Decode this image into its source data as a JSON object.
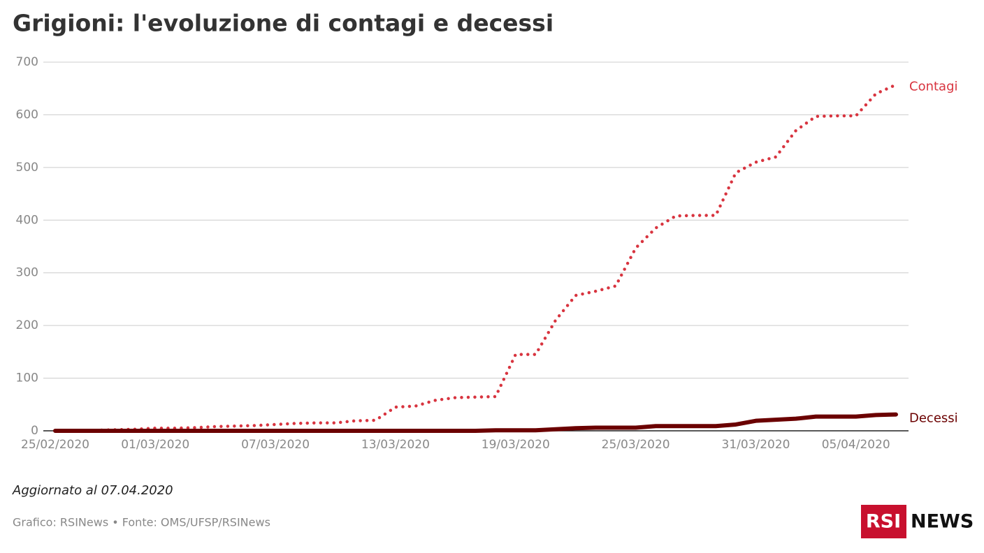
{
  "chart_data": {
    "type": "line",
    "title": "Grigioni: l'evoluzione di contagi e decessi",
    "note": "Aggiornato al 07.04.2020",
    "source": "Grafico: RSINews • Fonte: OMS/UFSP/RSINews",
    "logo": {
      "brand": "RSI",
      "label": "NEWS"
    },
    "x": [
      "25/02/2020",
      "26/02/2020",
      "27/02/2020",
      "28/02/2020",
      "29/02/2020",
      "01/03/2020",
      "02/03/2020",
      "03/03/2020",
      "04/03/2020",
      "05/03/2020",
      "06/03/2020",
      "07/03/2020",
      "08/03/2020",
      "09/03/2020",
      "10/03/2020",
      "11/03/2020",
      "12/03/2020",
      "13/03/2020",
      "14/03/2020",
      "15/03/2020",
      "16/03/2020",
      "17/03/2020",
      "18/03/2020",
      "19/03/2020",
      "20/03/2020",
      "21/03/2020",
      "22/03/2020",
      "23/03/2020",
      "24/03/2020",
      "25/03/2020",
      "26/03/2020",
      "27/03/2020",
      "28/03/2020",
      "29/03/2020",
      "30/03/2020",
      "31/03/2020",
      "01/04/2020",
      "02/04/2020",
      "03/04/2020",
      "04/04/2020",
      "05/04/2020",
      "06/04/2020",
      "07/04/2020"
    ],
    "xticks": [
      "25/02/2020",
      "01/03/2020",
      "07/03/2020",
      "13/03/2020",
      "19/03/2020",
      "25/03/2020",
      "31/03/2020",
      "05/04/2020"
    ],
    "ylim": [
      0,
      700
    ],
    "yticks": [
      0,
      100,
      200,
      300,
      400,
      500,
      600,
      700
    ],
    "grid": true,
    "series": [
      {
        "name": "Contagi",
        "color": "#d8343f",
        "style": "dotted",
        "values": [
          0,
          0,
          1,
          2,
          3,
          5,
          5,
          6,
          8,
          9,
          10,
          12,
          14,
          15,
          15,
          19,
          20,
          45,
          47,
          58,
          63,
          64,
          65,
          145,
          145,
          210,
          257,
          265,
          275,
          347,
          385,
          408,
          409,
          409,
          490,
          510,
          520,
          570,
          597,
          598,
          598,
          640,
          657
        ]
      },
      {
        "name": "Decessi",
        "color": "#6b0000",
        "style": "solid",
        "values": [
          0,
          0,
          0,
          0,
          0,
          0,
          0,
          0,
          0,
          0,
          0,
          0,
          0,
          0,
          0,
          0,
          0,
          0,
          0,
          0,
          0,
          0,
          1,
          1,
          1,
          3,
          5,
          6,
          6,
          6,
          9,
          9,
          9,
          9,
          12,
          19,
          21,
          23,
          27,
          27,
          27,
          30,
          31
        ]
      }
    ]
  }
}
